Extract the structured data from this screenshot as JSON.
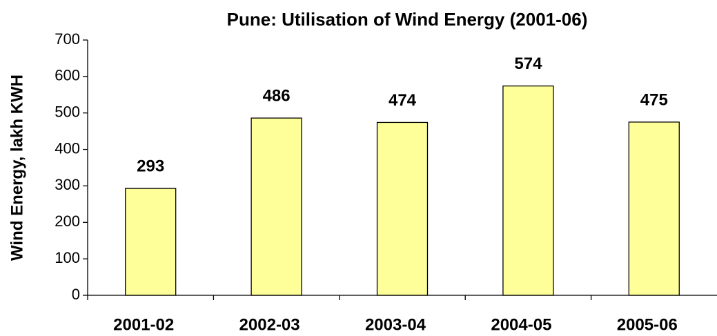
{
  "chart_data": {
    "type": "bar",
    "title": "Pune: Utilisation of Wind Energy (2001-06)",
    "y_label": "Wind Energy, lakh KWH",
    "categories": [
      "2001-02",
      "2002-03",
      "2003-04",
      "2004-05",
      "2005-06"
    ],
    "values": [
      293,
      486,
      474,
      574,
      475
    ],
    "color": "#ffff99",
    "ylim": [
      0,
      700
    ],
    "yticks": [
      0,
      100,
      200,
      300,
      400,
      500,
      600,
      700
    ],
    "grid": false
  }
}
